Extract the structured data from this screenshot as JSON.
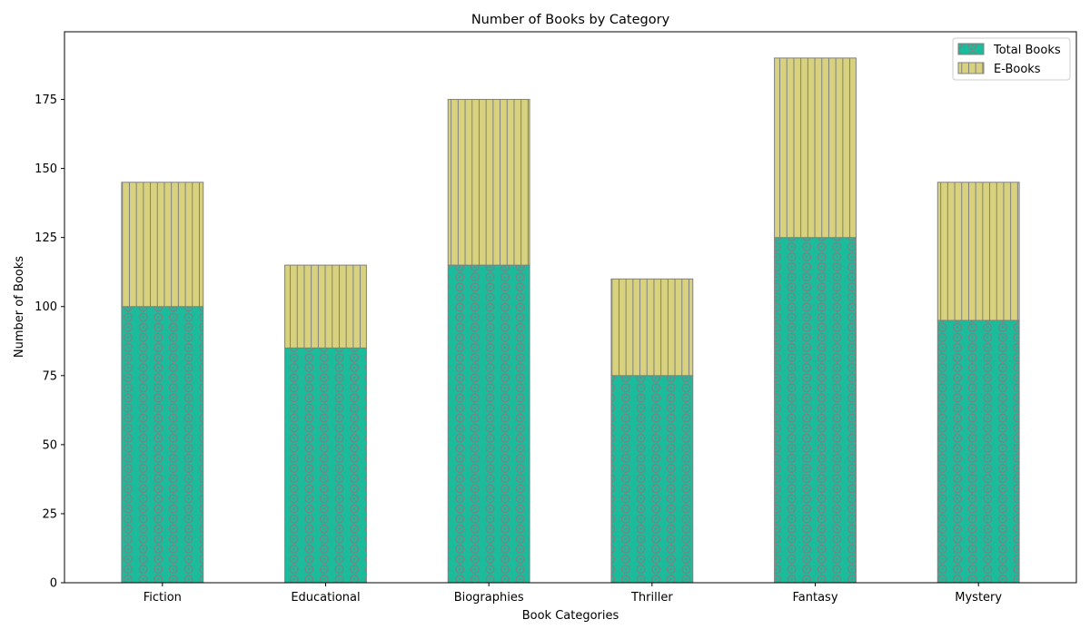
{
  "chart_data": {
    "type": "bar",
    "stacked": true,
    "title": "Number of Books by Category",
    "xlabel": "Book Categories",
    "ylabel": "Number of Books",
    "categories": [
      "Fiction",
      "Educational",
      "Biographies",
      "Thriller",
      "Fantasy",
      "Mystery"
    ],
    "series": [
      {
        "name": "Total Books",
        "values": [
          100,
          85,
          115,
          75,
          125,
          95
        ],
        "color": "#1ABC9C",
        "hatch": "circles"
      },
      {
        "name": "E-Books",
        "values": [
          45,
          30,
          60,
          35,
          65,
          50
        ],
        "color": "#D8D27E",
        "hatch": "vertical-lines"
      }
    ],
    "ylim": [
      0,
      199.5
    ],
    "yticks": [
      0,
      25,
      50,
      75,
      100,
      125,
      150,
      175
    ],
    "grid": false,
    "legend_position": "top-right",
    "edge_color": "#808080"
  }
}
